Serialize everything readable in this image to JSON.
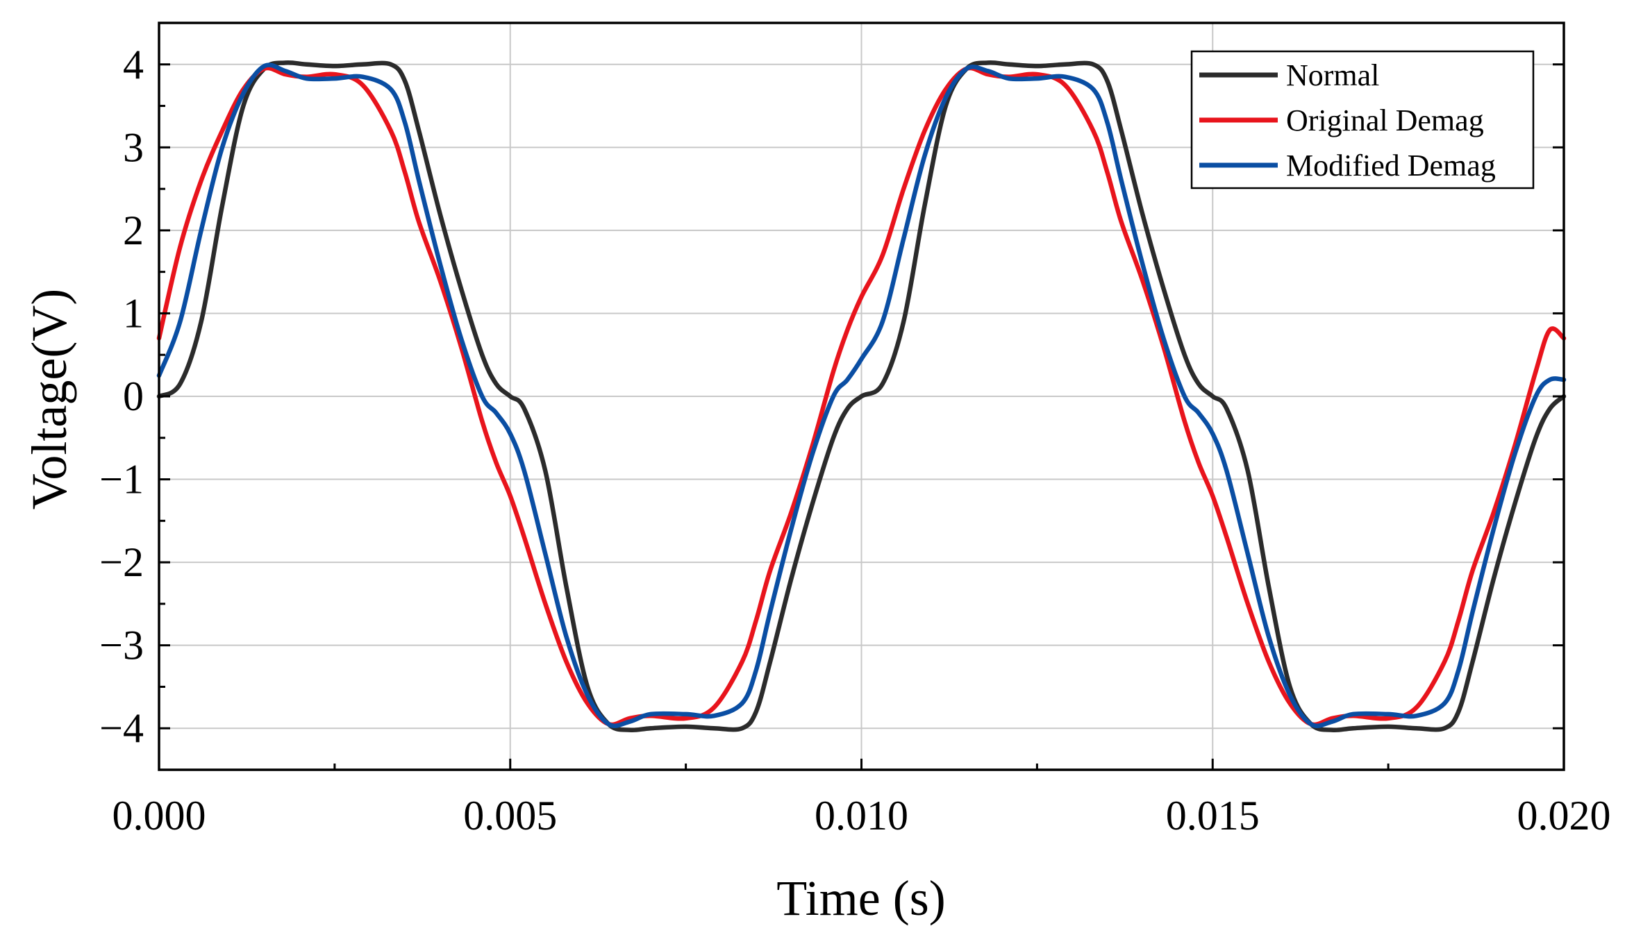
{
  "chart_data": {
    "type": "line",
    "title": "",
    "xlabel": "Time (s)",
    "ylabel": "Voltage(V)",
    "xlim": [
      0.0,
      0.02
    ],
    "ylim": [
      -4.5,
      4.5
    ],
    "x_ticks": [
      0.0,
      0.005,
      0.01,
      0.015,
      0.02
    ],
    "x_tick_labels": [
      "0.000",
      "0.005",
      "0.010",
      "0.015",
      "0.020"
    ],
    "y_ticks": [
      4,
      3,
      2,
      1,
      0,
      -1,
      -2,
      -3,
      -4
    ],
    "y_tick_labels": [
      "4",
      "3",
      "2",
      "1",
      "0",
      "−1",
      "−2",
      "−3",
      "−4"
    ],
    "grid": true,
    "legend_position": "top-right",
    "period": 0.01,
    "x": [
      0.0,
      0.0003,
      0.0006,
      0.0009,
      0.0012,
      0.0015,
      0.0018,
      0.0021,
      0.0025,
      0.0029,
      0.0033,
      0.0035,
      0.0037,
      0.004,
      0.0043,
      0.0046,
      0.0048,
      0.005,
      0.0052,
      0.0055,
      0.0058,
      0.0061,
      0.0064,
      0.0067,
      0.007,
      0.0075,
      0.0079,
      0.0083,
      0.0085,
      0.0087,
      0.009,
      0.0093,
      0.0096,
      0.0098,
      0.01,
      0.0103,
      0.0106,
      0.0109,
      0.0112,
      0.0115,
      0.0118,
      0.0121,
      0.0125,
      0.0129,
      0.0133,
      0.0135,
      0.0137,
      0.014,
      0.0143,
      0.0146,
      0.0148,
      0.015,
      0.0152,
      0.0155,
      0.0158,
      0.0161,
      0.0164,
      0.0167,
      0.017,
      0.0175,
      0.0179,
      0.0183,
      0.0185,
      0.0187,
      0.019,
      0.0193,
      0.0196,
      0.0198,
      0.02
    ],
    "series": [
      {
        "name": "Normal",
        "color": "#2b2b2b",
        "values": [
          0.0,
          0.15,
          0.9,
          2.3,
          3.5,
          3.95,
          4.02,
          4.0,
          3.98,
          4.0,
          4.0,
          3.8,
          3.2,
          2.2,
          1.3,
          0.5,
          0.15,
          0.0,
          -0.15,
          -0.9,
          -2.3,
          -3.5,
          -3.95,
          -4.02,
          -4.0,
          -3.98,
          -4.0,
          -4.0,
          -3.8,
          -3.2,
          -2.2,
          -1.3,
          -0.5,
          -0.15,
          0.0,
          0.15,
          0.9,
          2.3,
          3.5,
          3.95,
          4.02,
          4.0,
          3.98,
          4.0,
          4.0,
          3.8,
          3.2,
          2.2,
          1.3,
          0.5,
          0.15,
          0.0,
          -0.15,
          -0.9,
          -2.3,
          -3.5,
          -3.95,
          -4.02,
          -4.0,
          -3.98,
          -4.0,
          -4.0,
          -3.8,
          -3.2,
          -2.2,
          -1.3,
          -0.5,
          -0.15,
          0.0
        ]
      },
      {
        "name": "Original Demag",
        "color": "#e8141c",
        "values": [
          0.7,
          1.8,
          2.6,
          3.2,
          3.7,
          3.95,
          3.88,
          3.85,
          3.88,
          3.75,
          3.2,
          2.7,
          2.1,
          1.4,
          0.6,
          -0.3,
          -0.8,
          -1.2,
          -1.7,
          -2.5,
          -3.2,
          -3.7,
          -3.95,
          -3.88,
          -3.85,
          -3.88,
          -3.75,
          -3.2,
          -2.7,
          -2.1,
          -1.4,
          -0.6,
          0.3,
          0.8,
          1.2,
          1.7,
          2.5,
          3.2,
          3.7,
          3.95,
          3.88,
          3.85,
          3.88,
          3.75,
          3.2,
          2.7,
          2.1,
          1.4,
          0.6,
          -0.3,
          -0.8,
          -1.2,
          -1.7,
          -2.5,
          -3.2,
          -3.7,
          -3.95,
          -3.88,
          -3.85,
          -3.88,
          -3.75,
          -3.2,
          -2.7,
          -2.1,
          -1.4,
          -0.6,
          0.3,
          0.8,
          0.7
        ]
      },
      {
        "name": "Modified Demag",
        "color": "#0a4ea3",
        "values": [
          0.25,
          0.9,
          2.0,
          3.0,
          3.65,
          3.98,
          3.92,
          3.83,
          3.83,
          3.85,
          3.7,
          3.3,
          2.6,
          1.6,
          0.7,
          0.0,
          -0.2,
          -0.45,
          -0.9,
          -1.9,
          -2.9,
          -3.6,
          -3.95,
          -3.92,
          -3.83,
          -3.83,
          -3.85,
          -3.7,
          -3.3,
          -2.6,
          -1.6,
          -0.7,
          0.0,
          0.2,
          0.45,
          0.9,
          1.9,
          2.9,
          3.6,
          3.95,
          3.92,
          3.83,
          3.83,
          3.85,
          3.7,
          3.3,
          2.6,
          1.6,
          0.7,
          0.0,
          -0.2,
          -0.45,
          -0.9,
          -1.9,
          -2.9,
          -3.6,
          -3.95,
          -3.92,
          -3.83,
          -3.83,
          -3.85,
          -3.7,
          -3.3,
          -2.6,
          -1.6,
          -0.7,
          0.0,
          0.2,
          0.2
        ]
      }
    ]
  }
}
